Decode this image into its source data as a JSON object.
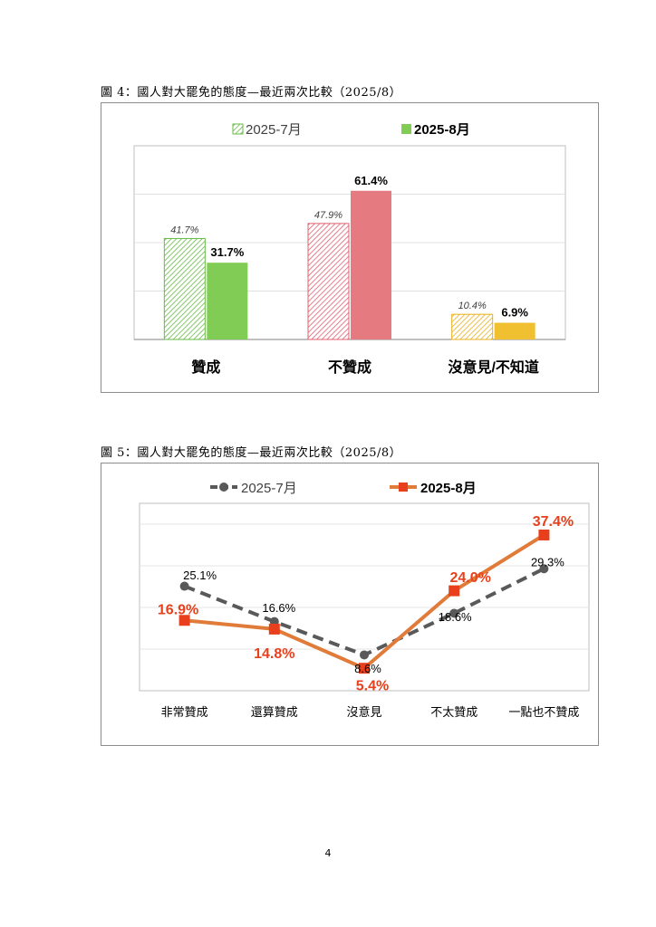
{
  "page": {
    "number": "4"
  },
  "figure4": {
    "caption": "圖 4：國人對大罷免的態度—最近兩次比較（2025/8）"
  },
  "figure5": {
    "caption": "圖 5：國人對大罷免的態度—最近兩次比較（2025/8）"
  },
  "chart_data": [
    {
      "type": "bar",
      "categories": [
        "贊成",
        "不贊成",
        "沒意見/不知道"
      ],
      "series": [
        {
          "name": "2025-7月",
          "values": [
            41.7,
            47.9,
            10.4
          ],
          "labels": [
            "41.7%",
            "47.9%",
            "10.4%"
          ],
          "style": "hatched"
        },
        {
          "name": "2025-8月",
          "values": [
            31.7,
            61.4,
            6.9
          ],
          "labels": [
            "31.7%",
            "61.4%",
            "6.9%"
          ],
          "style": "solid"
        }
      ],
      "category_colors": [
        "#80cc55",
        "#e57a80",
        "#f0c030"
      ],
      "hatch_colors": [
        "#66bb44",
        "#e06070",
        "#e8b020"
      ],
      "ylim": [
        0,
        80
      ],
      "grid": true,
      "legend": "top-center"
    },
    {
      "type": "line",
      "categories": [
        "非常贊成",
        "還算贊成",
        "沒意見",
        "不太贊成",
        "一點也不贊成"
      ],
      "series": [
        {
          "name": "2025-7月",
          "values": [
            25.1,
            16.6,
            8.6,
            18.6,
            29.3
          ],
          "labels": [
            "25.1%",
            "16.6%",
            "8.6%",
            "18.6%",
            "29.3%"
          ],
          "color": "#595959",
          "marker": "circle",
          "dash": true
        },
        {
          "name": "2025-8月",
          "values": [
            16.9,
            14.8,
            5.4,
            24.0,
            37.4
          ],
          "labels": [
            "16.9%",
            "14.8%",
            "5.4%",
            "24.0%",
            "37.4%"
          ],
          "color": "#e07b39",
          "marker_color": "#e8401c",
          "marker": "square",
          "dash": false
        }
      ],
      "ylim": [
        0,
        45
      ],
      "grid": true,
      "legend": "top-center"
    }
  ]
}
